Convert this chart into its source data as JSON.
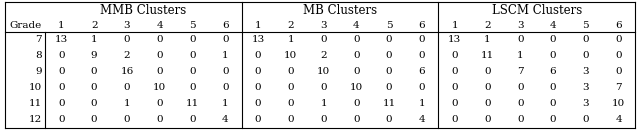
{
  "title_mmb": "MMB Clusters",
  "title_mb": "MB Clusters",
  "title_lscm": "LSCM Clusters",
  "grades": [
    "7",
    "8",
    "9",
    "10",
    "11",
    "12"
  ],
  "mmb_data": [
    [
      13,
      1,
      0,
      0,
      0,
      0
    ],
    [
      0,
      9,
      2,
      0,
      0,
      1
    ],
    [
      0,
      0,
      16,
      0,
      0,
      0
    ],
    [
      0,
      0,
      0,
      10,
      0,
      0
    ],
    [
      0,
      0,
      1,
      0,
      11,
      1
    ],
    [
      0,
      0,
      0,
      0,
      0,
      4
    ]
  ],
  "mb_data": [
    [
      13,
      1,
      0,
      0,
      0,
      0
    ],
    [
      0,
      10,
      2,
      0,
      0,
      0
    ],
    [
      0,
      0,
      10,
      0,
      0,
      6
    ],
    [
      0,
      0,
      0,
      10,
      0,
      0
    ],
    [
      0,
      0,
      1,
      0,
      11,
      1
    ],
    [
      0,
      0,
      0,
      0,
      0,
      4
    ]
  ],
  "lscm_data": [
    [
      13,
      1,
      0,
      0,
      0,
      0
    ],
    [
      0,
      11,
      1,
      0,
      0,
      0
    ],
    [
      0,
      0,
      7,
      6,
      3,
      0
    ],
    [
      0,
      0,
      0,
      0,
      3,
      7
    ],
    [
      0,
      0,
      0,
      0,
      3,
      10
    ],
    [
      0,
      0,
      0,
      0,
      0,
      4
    ]
  ],
  "background_color": "#ffffff",
  "font_size": 7.5,
  "title_font_size": 8.5
}
